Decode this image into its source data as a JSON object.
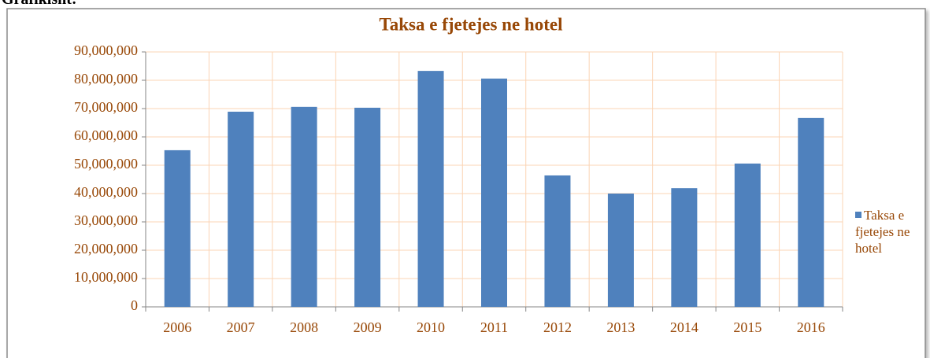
{
  "caption": "Grafikisht:",
  "chart_data": {
    "type": "bar",
    "title": "Taksa e fjetejes ne hotel",
    "categories": [
      "2006",
      "2007",
      "2008",
      "2009",
      "2010",
      "2011",
      "2012",
      "2013",
      "2014",
      "2015",
      "2016"
    ],
    "series": [
      {
        "name": "Taksa e fjetejes ne hotel",
        "color": "#4f81bd",
        "values": [
          55300000,
          68900000,
          70600000,
          70300000,
          83300000,
          80600000,
          46400000,
          40000000,
          41900000,
          50600000,
          66700000
        ]
      }
    ],
    "ylim": [
      0,
      90000000
    ],
    "yticks": [
      0,
      {
        "value": 10000000,
        "label": "10,000,000"
      },
      {
        "value": 20000000,
        "label": "20,000,000"
      },
      {
        "value": 30000000,
        "label": "30,000,000"
      },
      {
        "value": 40000000,
        "label": "40,000,000"
      },
      {
        "value": 50000000,
        "label": "50,000,000"
      },
      {
        "value": 60000000,
        "label": "60,000,000"
      },
      {
        "value": 70000000,
        "label": "70,000,000"
      },
      {
        "value": 80000000,
        "label": "80,000,000"
      },
      {
        "value": 90000000,
        "label": "90,000,000"
      }
    ],
    "grid": true,
    "legend": "right"
  }
}
